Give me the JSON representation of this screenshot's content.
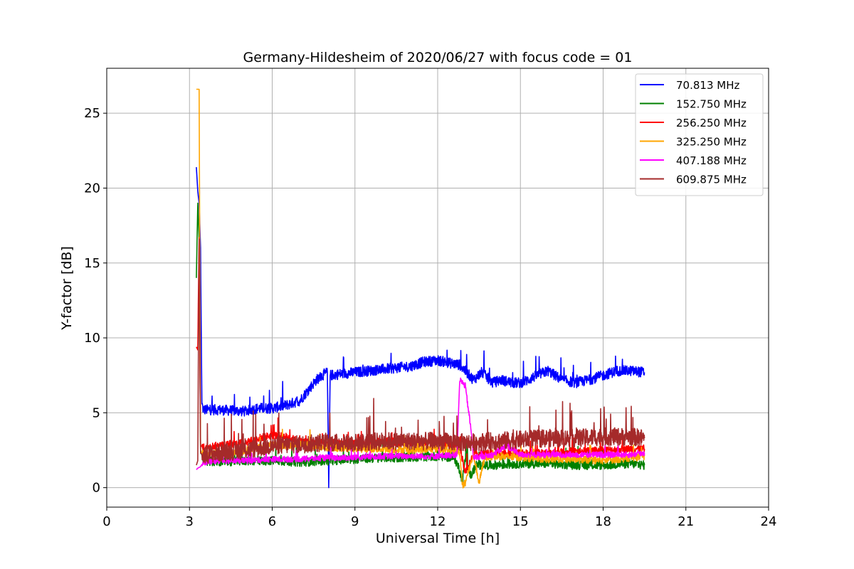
{
  "chart_data": {
    "type": "line",
    "title": "Germany-Hildesheim of 2020/06/27 with focus code = 01",
    "xlabel": "Universal Time [h]",
    "ylabel": "Y-factor [dB]",
    "xlim": [
      0,
      24
    ],
    "ylim": [
      -1.3,
      28
    ],
    "xticks": [
      0,
      3,
      6,
      9,
      12,
      15,
      18,
      21,
      24
    ],
    "yticks": [
      0,
      5,
      10,
      15,
      20,
      25
    ],
    "xtick_labels": [
      "0",
      "3",
      "6",
      "9",
      "12",
      "15",
      "18",
      "21",
      "24"
    ],
    "ytick_labels": [
      "0",
      "5",
      "10",
      "15",
      "20",
      "25"
    ],
    "grid": true,
    "legend_position": "top-right",
    "series": [
      {
        "name": "  70.813 MHz",
        "color": "#0000ff",
        "noise": 0.35,
        "points": [
          [
            3.25,
            21.4
          ],
          [
            3.3,
            19.8
          ],
          [
            3.35,
            19.0
          ],
          [
            3.4,
            16.0
          ],
          [
            3.45,
            5.6
          ],
          [
            3.5,
            5.2
          ],
          [
            4.0,
            5.2
          ],
          [
            5.0,
            5.1
          ],
          [
            5.5,
            5.3
          ],
          [
            6.0,
            5.3
          ],
          [
            6.5,
            5.5
          ],
          [
            7.0,
            5.8
          ],
          [
            7.3,
            6.5
          ],
          [
            7.6,
            7.2
          ],
          [
            7.9,
            7.6
          ],
          [
            8.0,
            7.7
          ],
          [
            8.05,
            0.0
          ],
          [
            8.1,
            7.5
          ],
          [
            8.5,
            7.6
          ],
          [
            9.0,
            7.7
          ],
          [
            9.5,
            7.8
          ],
          [
            10.0,
            7.9
          ],
          [
            10.5,
            8.0
          ],
          [
            11.0,
            8.1
          ],
          [
            11.5,
            8.4
          ],
          [
            12.0,
            8.5
          ],
          [
            12.5,
            8.3
          ],
          [
            12.8,
            8.2
          ],
          [
            13.0,
            7.8
          ],
          [
            13.3,
            7.2
          ],
          [
            13.6,
            7.7
          ],
          [
            14.0,
            7.0
          ],
          [
            14.3,
            7.2
          ],
          [
            14.7,
            7.0
          ],
          [
            15.0,
            7.0
          ],
          [
            15.3,
            7.2
          ],
          [
            15.6,
            7.5
          ],
          [
            16.0,
            7.8
          ],
          [
            16.5,
            7.2
          ],
          [
            17.0,
            7.0
          ],
          [
            17.5,
            7.2
          ],
          [
            18.0,
            7.5
          ],
          [
            18.5,
            7.8
          ],
          [
            19.0,
            7.8
          ],
          [
            19.5,
            7.7
          ]
        ]
      },
      {
        "name": "152.750 MHz",
        "color": "#008000",
        "noise": 0.3,
        "points": [
          [
            3.25,
            14.0
          ],
          [
            3.3,
            19.0
          ],
          [
            3.35,
            16.5
          ],
          [
            3.4,
            2.5
          ],
          [
            3.5,
            1.8
          ],
          [
            4.0,
            1.7
          ],
          [
            5.0,
            1.8
          ],
          [
            6.0,
            1.8
          ],
          [
            7.0,
            1.7
          ],
          [
            8.0,
            1.8
          ],
          [
            9.0,
            1.9
          ],
          [
            10.0,
            2.0
          ],
          [
            11.0,
            2.0
          ],
          [
            12.0,
            2.1
          ],
          [
            12.6,
            2.0
          ],
          [
            12.8,
            1.2
          ],
          [
            12.9,
            0.4
          ],
          [
            13.0,
            2.0
          ],
          [
            13.2,
            0.8
          ],
          [
            13.4,
            1.5
          ],
          [
            13.6,
            1.5
          ],
          [
            14.0,
            1.5
          ],
          [
            15.0,
            1.6
          ],
          [
            16.0,
            1.6
          ],
          [
            17.0,
            1.5
          ],
          [
            18.0,
            1.5
          ],
          [
            19.0,
            1.6
          ],
          [
            19.5,
            1.5
          ]
        ]
      },
      {
        "name": "256.250 MHz",
        "color": "#ff0000",
        "noise": 0.25,
        "points": [
          [
            3.25,
            9.4
          ],
          [
            3.3,
            9.2
          ],
          [
            3.35,
            16.7
          ],
          [
            3.4,
            2.8
          ],
          [
            3.5,
            2.7
          ],
          [
            4.0,
            2.8
          ],
          [
            5.0,
            3.0
          ],
          [
            5.5,
            3.3
          ],
          [
            6.0,
            3.5
          ],
          [
            6.5,
            3.4
          ],
          [
            7.0,
            3.1
          ],
          [
            8.0,
            3.0
          ],
          [
            9.0,
            3.0
          ],
          [
            10.0,
            3.1
          ],
          [
            11.0,
            3.0
          ],
          [
            12.0,
            3.0
          ],
          [
            12.8,
            2.8
          ],
          [
            13.0,
            1.0
          ],
          [
            13.3,
            2.2
          ],
          [
            14.0,
            2.3
          ],
          [
            15.0,
            2.3
          ],
          [
            16.0,
            2.3
          ],
          [
            17.0,
            2.4
          ],
          [
            18.0,
            2.5
          ],
          [
            19.0,
            2.6
          ],
          [
            19.5,
            2.6
          ]
        ]
      },
      {
        "name": "325.250 MHz",
        "color": "#ffa500",
        "noise": 0.25,
        "points": [
          [
            3.25,
            26.6
          ],
          [
            3.3,
            26.6
          ],
          [
            3.35,
            26.6
          ],
          [
            3.4,
            2.4
          ],
          [
            3.5,
            2.2
          ],
          [
            4.0,
            2.3
          ],
          [
            5.0,
            2.5
          ],
          [
            6.0,
            2.8
          ],
          [
            7.0,
            2.9
          ],
          [
            8.0,
            2.7
          ],
          [
            9.0,
            2.6
          ],
          [
            10.0,
            2.6
          ],
          [
            11.0,
            2.5
          ],
          [
            12.0,
            2.6
          ],
          [
            12.8,
            2.4
          ],
          [
            12.9,
            0.2
          ],
          [
            13.0,
            0.3
          ],
          [
            13.1,
            1.0
          ],
          [
            13.3,
            2.2
          ],
          [
            13.5,
            0.3
          ],
          [
            13.7,
            2.0
          ],
          [
            14.0,
            2.1
          ],
          [
            15.0,
            2.0
          ],
          [
            16.0,
            1.9
          ],
          [
            17.0,
            1.9
          ],
          [
            18.0,
            1.8
          ],
          [
            19.0,
            2.0
          ],
          [
            19.5,
            2.1
          ]
        ]
      },
      {
        "name": "407.188 MHz",
        "color": "#ff00ff",
        "noise": 0.2,
        "points": [
          [
            3.25,
            1.2
          ],
          [
            3.3,
            1.3
          ],
          [
            3.4,
            1.4
          ],
          [
            3.5,
            1.7
          ],
          [
            4.0,
            1.8
          ],
          [
            5.0,
            1.8
          ],
          [
            6.0,
            1.9
          ],
          [
            7.0,
            1.9
          ],
          [
            8.0,
            2.0
          ],
          [
            9.0,
            2.0
          ],
          [
            10.0,
            2.1
          ],
          [
            11.0,
            2.1
          ],
          [
            12.0,
            2.1
          ],
          [
            12.7,
            2.2
          ],
          [
            12.8,
            7.2
          ],
          [
            13.0,
            6.8
          ],
          [
            13.2,
            4.0
          ],
          [
            13.3,
            2.0
          ],
          [
            14.0,
            2.2
          ],
          [
            14.5,
            2.8
          ],
          [
            15.0,
            2.2
          ],
          [
            16.0,
            2.2
          ],
          [
            17.0,
            2.2
          ],
          [
            18.0,
            2.2
          ],
          [
            19.0,
            2.2
          ],
          [
            19.5,
            2.3
          ]
        ]
      },
      {
        "name": "609.875 MHz",
        "color": "#a52a2a",
        "noise": 0.6,
        "points": [
          [
            3.25,
            1.5
          ],
          [
            3.3,
            1.8
          ],
          [
            3.35,
            16.6
          ],
          [
            3.4,
            2.3
          ],
          [
            3.5,
            2.2
          ],
          [
            4.0,
            2.3
          ],
          [
            5.0,
            2.5
          ],
          [
            6.0,
            2.8
          ],
          [
            7.0,
            2.9
          ],
          [
            8.0,
            3.0
          ],
          [
            9.0,
            3.0
          ],
          [
            10.0,
            3.1
          ],
          [
            11.0,
            3.1
          ],
          [
            12.0,
            3.1
          ],
          [
            13.0,
            3.0
          ],
          [
            14.0,
            3.1
          ],
          [
            15.0,
            3.2
          ],
          [
            16.0,
            3.3
          ],
          [
            17.0,
            3.3
          ],
          [
            18.0,
            3.4
          ],
          [
            19.0,
            3.4
          ],
          [
            19.5,
            3.3
          ]
        ]
      }
    ]
  }
}
